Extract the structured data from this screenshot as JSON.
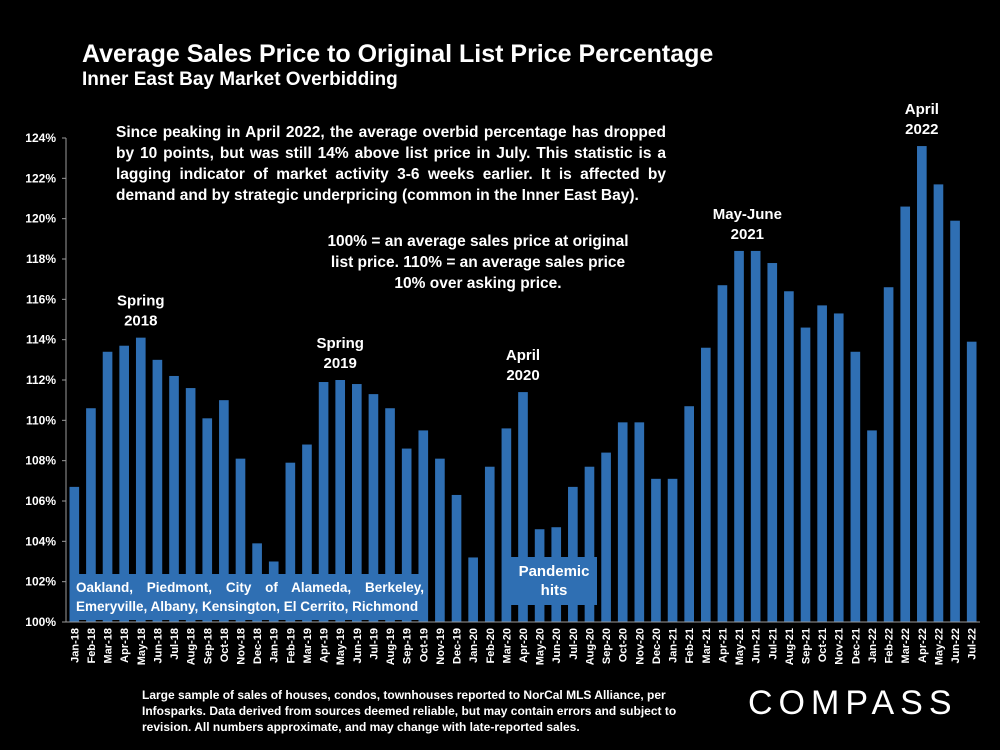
{
  "chart_data": {
    "type": "bar",
    "title": "Average Sales Price to Original List Price Percentage",
    "subtitle": "Inner East Bay Market Overbidding",
    "ylim": [
      100,
      124
    ],
    "yticks": [
      "100%",
      "102%",
      "104%",
      "106%",
      "108%",
      "110%",
      "112%",
      "114%",
      "116%",
      "118%",
      "120%",
      "122%",
      "124%"
    ],
    "categories": [
      "Jan-18",
      "Feb-18",
      "Mar-18",
      "Apr-18",
      "May-18",
      "Jun-18",
      "Jul-18",
      "Aug-18",
      "Sep-18",
      "Oct-18",
      "Nov-18",
      "Dec-18",
      "Jan-19",
      "Feb-19",
      "Mar-19",
      "Apr-19",
      "May-19",
      "Jun-19",
      "Jul-19",
      "Aug-19",
      "Sep-19",
      "Oct-19",
      "Nov-19",
      "Dec-19",
      "Jan-20",
      "Feb-20",
      "Mar-20",
      "Apr-20",
      "May-20",
      "Jun-20",
      "Jul-20",
      "Aug-20",
      "Sep-20",
      "Oct-20",
      "Nov-20",
      "Dec-20",
      "Jan-21",
      "Feb-21",
      "Mar-21",
      "Apr-21",
      "May-21",
      "Jun-21",
      "Jul-21",
      "Aug-21",
      "Sep-21",
      "Oct-21",
      "Nov-21",
      "Dec-21",
      "Jan-22",
      "Feb-22",
      "Mar-22",
      "Apr-22",
      "May-22",
      "Jun-22",
      "Jul-22"
    ],
    "values": [
      106.7,
      110.6,
      113.4,
      113.7,
      114.1,
      113.0,
      112.2,
      111.6,
      110.1,
      111.0,
      108.1,
      103.9,
      103.0,
      107.9,
      108.8,
      111.9,
      112.0,
      111.8,
      111.3,
      110.6,
      108.6,
      109.5,
      108.1,
      106.3,
      103.2,
      107.7,
      109.6,
      111.4,
      104.6,
      104.7,
      106.7,
      107.7,
      108.4,
      109.9,
      109.9,
      107.1,
      107.1,
      110.7,
      113.6,
      116.7,
      118.4,
      118.4,
      117.8,
      116.4,
      114.6,
      115.7,
      115.3,
      113.4,
      109.5,
      116.6,
      120.6,
      123.6,
      121.7,
      119.9,
      113.9
    ],
    "annotations": [
      {
        "text": [
          "Spring",
          "2018"
        ],
        "index": 4
      },
      {
        "text": [
          "Spring",
          "2019"
        ],
        "index": 16
      },
      {
        "text": [
          "April",
          "2020"
        ],
        "index": 27
      },
      {
        "text": [
          "May-June",
          "2021"
        ],
        "index": 40.5
      },
      {
        "text": [
          "April",
          "2022"
        ],
        "index": 51
      }
    ],
    "colors": {
      "bar": "#2f6fb3",
      "axis": "#9a9a9a",
      "text": "#ffffff"
    }
  },
  "notes": {
    "summary": "Since peaking in April 2022, the average overbid percentage has dropped by 10 points, but was still 14% above list price in July. This statistic is a lagging indicator of market activity 3-6 weeks earlier. It is affected by demand and by strategic underpricing (common in the Inner East Bay).",
    "definition": "100% = an average sales price at original list price. 110% = an average sales price 10% over asking price.",
    "cities": "Oakland, Piedmont, City of Alameda, Berkeley, Emeryville, Albany, Kensington, El Cerrito, Richmond",
    "pandemic": "Pandemic hits"
  },
  "footnote": "Large sample of sales of houses, condos, townhouses reported to NorCal MLS Alliance, per Infosparks. Data derived from sources deemed reliable, but may contain errors and subject to revision. All numbers approximate, and may change with late-reported sales.",
  "logo": "COMPASS"
}
